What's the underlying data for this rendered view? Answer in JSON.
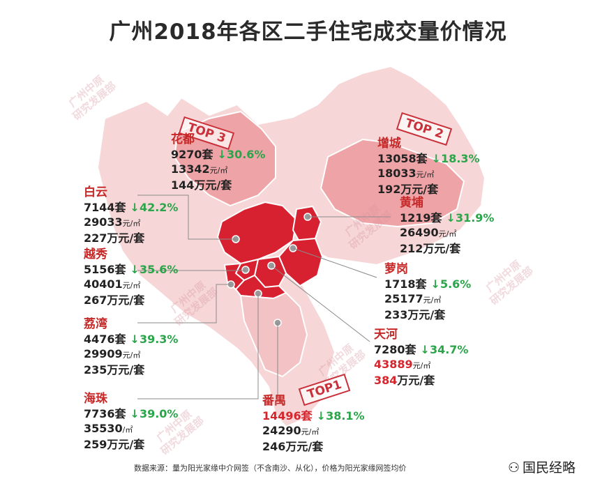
{
  "title": "广州2018年各区二手住宅成交量价情况",
  "stamps": [
    "TOP 3",
    "TOP 2",
    "TOP1"
  ],
  "watermark": {
    "line1": "广州中原",
    "line2": "研究发展部"
  },
  "colors": {
    "hot": "#d82130",
    "mid": "#eea3a6",
    "light": "#f6d6d7",
    "up": "#2aa54a",
    "name": "#c62828"
  },
  "districts": [
    {
      "id": "huadu",
      "name": "花都",
      "volume": "9270套",
      "change": "↓30.6%",
      "price": "13342",
      "unit_price": "元/㎡",
      "total": "144",
      "unit_total": "万元/套"
    },
    {
      "id": "zengcheng",
      "name": "增城",
      "volume": "13058套",
      "change": "↓18.3%",
      "price": "18033",
      "unit_price": "元/㎡",
      "total": "192",
      "unit_total": "万元/套"
    },
    {
      "id": "baiyun",
      "name": "白云",
      "volume": "7144套",
      "change": "↓42.2%",
      "price": "29033",
      "unit_price": "元/㎡",
      "total": "227",
      "unit_total": "万元/套"
    },
    {
      "id": "huangpu",
      "name": "黄埔",
      "volume": "1219套",
      "change": "↓31.9%",
      "price": "26490",
      "unit_price": "元/㎡",
      "total": "212",
      "unit_total": "万元/套"
    },
    {
      "id": "yuexiu",
      "name": "越秀",
      "volume": "5156套",
      "change": "↓35.6%",
      "price": "40401",
      "unit_price": "元/㎡",
      "total": "267",
      "unit_total": "万元/套"
    },
    {
      "id": "luogang",
      "name": "萝岗",
      "volume": "1718套",
      "change": "↓5.6%",
      "price": "25177",
      "unit_price": "元/㎡",
      "total": "233",
      "unit_total": "万元/套"
    },
    {
      "id": "liwan",
      "name": "荔湾",
      "volume": "4476套",
      "change": "↓39.3%",
      "price": "29909",
      "unit_price": "元/㎡",
      "total": "235",
      "unit_total": "万元/套"
    },
    {
      "id": "tianhe",
      "name": "天河",
      "volume": "7280套",
      "change": "↓34.7%",
      "price": "43889",
      "unit_price": "元/㎡",
      "total": "384",
      "unit_total": "万元/套"
    },
    {
      "id": "haizhu",
      "name": "海珠",
      "volume": "7736套",
      "change": "↓39.0%",
      "price": "35530",
      "unit_price": "/㎡",
      "total": "259",
      "unit_total": "万元/套"
    },
    {
      "id": "panyu",
      "name": "番禺",
      "volume": "14496套",
      "change": "↓38.1%",
      "price": "24290",
      "unit_price": "元/㎡",
      "total": "246",
      "unit_total": "万元/套"
    }
  ],
  "footer": "数据来源：量为阳光家缘中介网签（不含南沙、从化），价格为阳光家缘网签均价",
  "brand": {
    "logo": "⚇",
    "text": "国民经略"
  }
}
